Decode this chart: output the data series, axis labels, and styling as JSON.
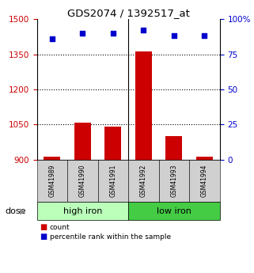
{
  "title": "GDS2074 / 1392517_at",
  "categories": [
    "GSM41989",
    "GSM41990",
    "GSM41991",
    "GSM41992",
    "GSM41993",
    "GSM41994"
  ],
  "bar_values": [
    912,
    1058,
    1042,
    1362,
    1002,
    912
  ],
  "bar_base": 900,
  "percentile_values": [
    86,
    90,
    90,
    92,
    88,
    88
  ],
  "bar_color": "#cc0000",
  "dot_color": "#0000cc",
  "left_ylim": [
    900,
    1500
  ],
  "left_yticks": [
    900,
    1050,
    1200,
    1350,
    1500
  ],
  "right_ylim": [
    0,
    100
  ],
  "right_yticks": [
    0,
    25,
    50,
    75,
    100
  ],
  "right_yticklabels": [
    "0",
    "25",
    "50",
    "75",
    "100%"
  ],
  "group_labels": [
    "high iron",
    "low iron"
  ],
  "hi_color": "#bbffbb",
  "lo_color": "#44cc44",
  "dose_label": "dose",
  "legend_count_label": "count",
  "legend_pct_label": "percentile rank within the sample",
  "bg_color": "#ffffff",
  "tick_label_color_left": "#cc0000",
  "tick_label_color_right": "#0000cc",
  "bar_width": 0.55,
  "gridline_ticks": [
    1050,
    1200,
    1350
  ]
}
